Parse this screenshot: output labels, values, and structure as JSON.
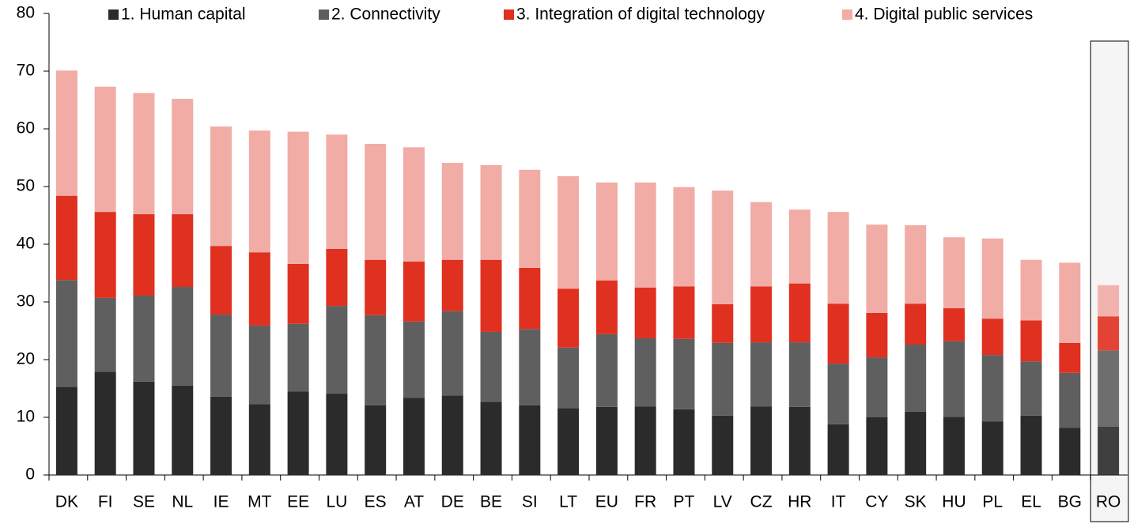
{
  "chart_data": {
    "type": "stacked_bar",
    "categories": [
      "DK",
      "FI",
      "SE",
      "NL",
      "IE",
      "MT",
      "EE",
      "LU",
      "ES",
      "AT",
      "DE",
      "BE",
      "SI",
      "LT",
      "EU",
      "FR",
      "PT",
      "LV",
      "CZ",
      "HR",
      "IT",
      "CY",
      "SK",
      "HU",
      "PL",
      "EL",
      "BG",
      "RO"
    ],
    "series": [
      {
        "name": "1. Human capital",
        "color": "#2b2b2b",
        "values": [
          15.3,
          17.9,
          16.2,
          15.5,
          13.6,
          12.3,
          14.5,
          14.1,
          12.1,
          13.4,
          13.8,
          12.7,
          12.1,
          11.6,
          11.8,
          11.9,
          11.4,
          10.3,
          11.9,
          11.8,
          8.8,
          10.0,
          11.0,
          10.1,
          9.3,
          10.3,
          8.2,
          8.4
        ]
      },
      {
        "name": "2. Connectivity",
        "color": "#5f5f5f",
        "values": [
          18.5,
          12.8,
          14.9,
          17.1,
          14.2,
          13.6,
          11.7,
          15.2,
          15.6,
          13.2,
          14.6,
          12.1,
          13.2,
          10.5,
          12.6,
          11.8,
          12.2,
          12.6,
          11.1,
          11.2,
          10.5,
          10.4,
          11.6,
          13.1,
          11.5,
          9.4,
          9.5,
          13.2
        ]
      },
      {
        "name": "3. Integration of digital technology",
        "color": "#e03020",
        "values": [
          14.6,
          14.9,
          14.1,
          12.6,
          11.9,
          12.7,
          10.4,
          9.9,
          9.6,
          10.4,
          8.9,
          12.5,
          10.6,
          10.2,
          9.3,
          8.8,
          9.1,
          6.7,
          9.7,
          10.2,
          10.4,
          7.7,
          7.1,
          5.7,
          6.3,
          7.1,
          5.2,
          5.9
        ]
      },
      {
        "name": "4. Digital public services",
        "color": "#f2aca6",
        "values": [
          21.7,
          21.7,
          21.0,
          20.0,
          20.7,
          21.1,
          22.9,
          19.8,
          20.1,
          19.8,
          16.8,
          16.4,
          17.0,
          19.5,
          17.0,
          18.2,
          17.2,
          19.7,
          14.6,
          12.8,
          15.9,
          15.3,
          13.6,
          12.3,
          13.9,
          10.5,
          13.9,
          5.4
        ]
      }
    ],
    "ylim": [
      0,
      80
    ],
    "yticks": [
      0,
      10,
      20,
      30,
      40,
      50,
      60,
      70,
      80
    ],
    "grid": false
  }
}
